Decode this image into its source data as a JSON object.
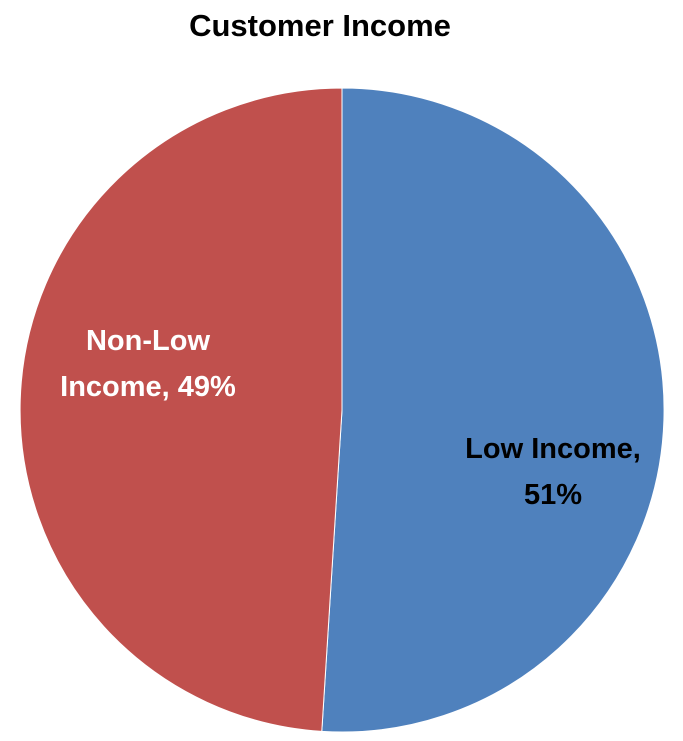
{
  "chart_data": {
    "type": "pie",
    "title": "Customer Income",
    "slices": [
      {
        "label": "Low Income",
        "value": 51,
        "data_label_lines": [
          "Low Income,",
          "51%"
        ],
        "color": "#4f81bd",
        "label_color": "#000000"
      },
      {
        "label": "Non-Low Income",
        "value": 49,
        "data_label_lines": [
          "Non-Low",
          "Income, 49%"
        ],
        "color": "#c0504d",
        "label_color": "#ffffff"
      }
    ],
    "start_angle_deg": 0,
    "direction": "clockwise",
    "legend": "none"
  }
}
